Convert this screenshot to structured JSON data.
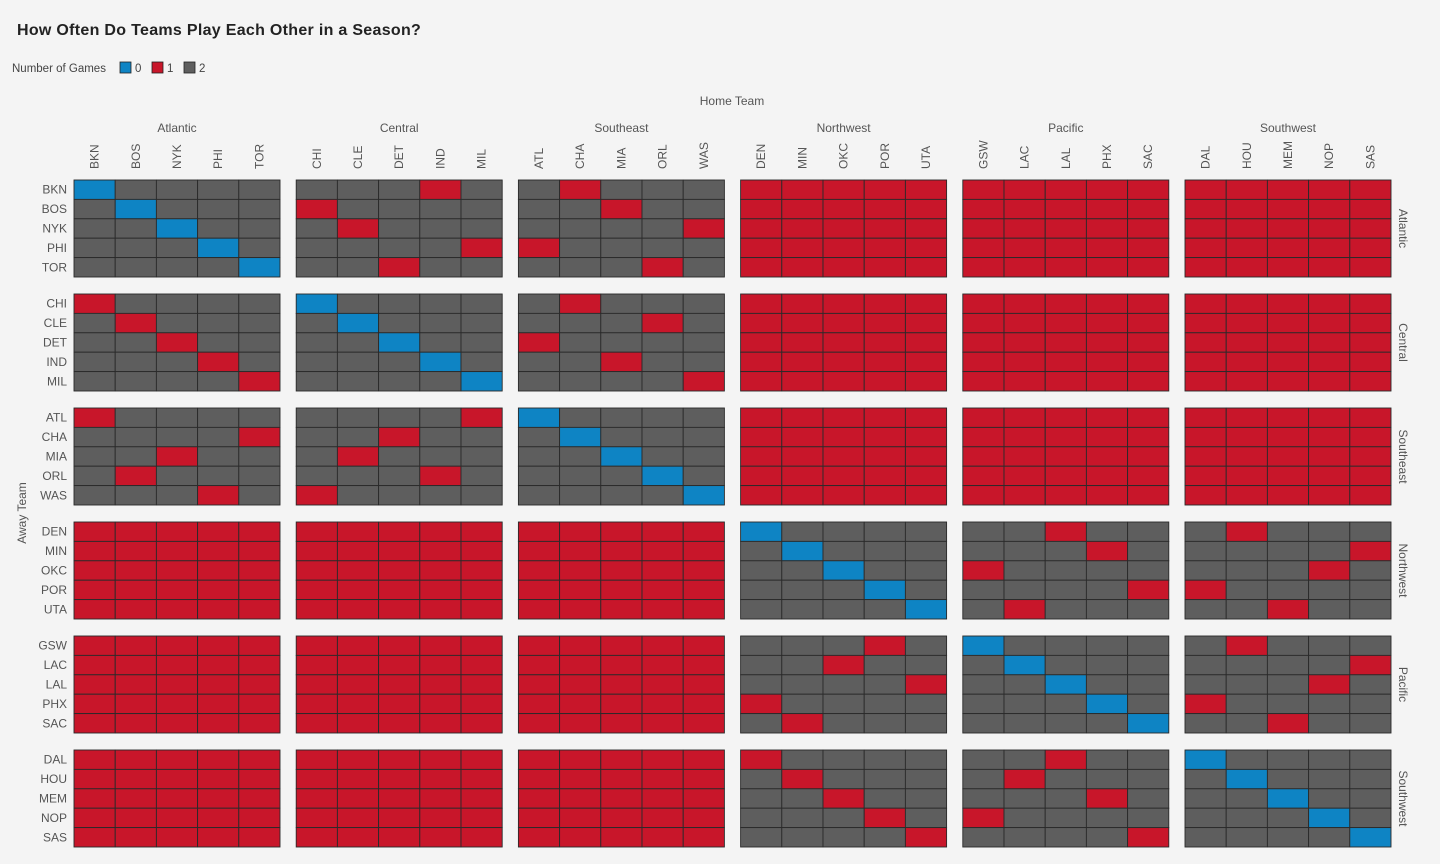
{
  "chart_data": {
    "type": "heatmap",
    "title": "How Often Do Teams Play Each Other in a Season?",
    "legend": {
      "title": "Number of Games",
      "placement": "top-left",
      "entries": [
        {
          "value": 0,
          "label": "0",
          "color": "#0e84c4"
        },
        {
          "value": 1,
          "label": "1",
          "color": "#c8162a"
        },
        {
          "value": 2,
          "label": "2",
          "color": "#5e5e5e"
        }
      ]
    },
    "xlabel": "Home Team",
    "ylabel": "Away Team",
    "divisions": [
      {
        "name": "Atlantic",
        "teams": [
          "BKN",
          "BOS",
          "NYK",
          "PHI",
          "TOR"
        ]
      },
      {
        "name": "Central",
        "teams": [
          "CHI",
          "CLE",
          "DET",
          "IND",
          "MIL"
        ]
      },
      {
        "name": "Southeast",
        "teams": [
          "ATL",
          "CHA",
          "MIA",
          "ORL",
          "WAS"
        ]
      },
      {
        "name": "Northwest",
        "teams": [
          "DEN",
          "MIN",
          "OKC",
          "POR",
          "UTA"
        ]
      },
      {
        "name": "Pacific",
        "teams": [
          "GSW",
          "LAC",
          "LAL",
          "PHX",
          "SAC"
        ]
      },
      {
        "name": "Southwest",
        "teams": [
          "DAL",
          "HOU",
          "MEM",
          "NOP",
          "SAS"
        ]
      }
    ],
    "matrix": [
      [
        0,
        2,
        2,
        2,
        2,
        2,
        2,
        2,
        1,
        2,
        2,
        1,
        2,
        2,
        2,
        1,
        1,
        1,
        1,
        1,
        1,
        1,
        1,
        1,
        1,
        1,
        1,
        1,
        1,
        1
      ],
      [
        2,
        0,
        2,
        2,
        2,
        1,
        2,
        2,
        2,
        2,
        2,
        2,
        1,
        2,
        2,
        1,
        1,
        1,
        1,
        1,
        1,
        1,
        1,
        1,
        1,
        1,
        1,
        1,
        1,
        1
      ],
      [
        2,
        2,
        0,
        2,
        2,
        2,
        1,
        2,
        2,
        2,
        2,
        2,
        2,
        2,
        1,
        1,
        1,
        1,
        1,
        1,
        1,
        1,
        1,
        1,
        1,
        1,
        1,
        1,
        1,
        1
      ],
      [
        2,
        2,
        2,
        0,
        2,
        2,
        2,
        2,
        2,
        1,
        1,
        2,
        2,
        2,
        2,
        1,
        1,
        1,
        1,
        1,
        1,
        1,
        1,
        1,
        1,
        1,
        1,
        1,
        1,
        1
      ],
      [
        2,
        2,
        2,
        2,
        0,
        2,
        2,
        1,
        2,
        2,
        2,
        2,
        2,
        1,
        2,
        1,
        1,
        1,
        1,
        1,
        1,
        1,
        1,
        1,
        1,
        1,
        1,
        1,
        1,
        1
      ],
      [
        1,
        2,
        2,
        2,
        2,
        0,
        2,
        2,
        2,
        2,
        2,
        1,
        2,
        2,
        2,
        1,
        1,
        1,
        1,
        1,
        1,
        1,
        1,
        1,
        1,
        1,
        1,
        1,
        1,
        1
      ],
      [
        2,
        1,
        2,
        2,
        2,
        2,
        0,
        2,
        2,
        2,
        2,
        2,
        2,
        1,
        2,
        1,
        1,
        1,
        1,
        1,
        1,
        1,
        1,
        1,
        1,
        1,
        1,
        1,
        1,
        1
      ],
      [
        2,
        2,
        1,
        2,
        2,
        2,
        2,
        0,
        2,
        2,
        1,
        2,
        2,
        2,
        2,
        1,
        1,
        1,
        1,
        1,
        1,
        1,
        1,
        1,
        1,
        1,
        1,
        1,
        1,
        1
      ],
      [
        2,
        2,
        2,
        1,
        2,
        2,
        2,
        2,
        0,
        2,
        2,
        2,
        1,
        2,
        2,
        1,
        1,
        1,
        1,
        1,
        1,
        1,
        1,
        1,
        1,
        1,
        1,
        1,
        1,
        1
      ],
      [
        2,
        2,
        2,
        2,
        1,
        2,
        2,
        2,
        2,
        0,
        2,
        2,
        2,
        2,
        1,
        1,
        1,
        1,
        1,
        1,
        1,
        1,
        1,
        1,
        1,
        1,
        1,
        1,
        1,
        1
      ],
      [
        1,
        2,
        2,
        2,
        2,
        2,
        2,
        2,
        2,
        1,
        0,
        2,
        2,
        2,
        2,
        1,
        1,
        1,
        1,
        1,
        1,
        1,
        1,
        1,
        1,
        1,
        1,
        1,
        1,
        1
      ],
      [
        2,
        2,
        2,
        2,
        1,
        2,
        2,
        1,
        2,
        2,
        2,
        0,
        2,
        2,
        2,
        1,
        1,
        1,
        1,
        1,
        1,
        1,
        1,
        1,
        1,
        1,
        1,
        1,
        1,
        1
      ],
      [
        2,
        2,
        1,
        2,
        2,
        2,
        1,
        2,
        2,
        2,
        2,
        2,
        0,
        2,
        2,
        1,
        1,
        1,
        1,
        1,
        1,
        1,
        1,
        1,
        1,
        1,
        1,
        1,
        1,
        1
      ],
      [
        2,
        1,
        2,
        2,
        2,
        2,
        2,
        2,
        1,
        2,
        2,
        2,
        2,
        0,
        2,
        1,
        1,
        1,
        1,
        1,
        1,
        1,
        1,
        1,
        1,
        1,
        1,
        1,
        1,
        1
      ],
      [
        2,
        2,
        2,
        1,
        2,
        1,
        2,
        2,
        2,
        2,
        2,
        2,
        2,
        2,
        0,
        1,
        1,
        1,
        1,
        1,
        1,
        1,
        1,
        1,
        1,
        1,
        1,
        1,
        1,
        1
      ],
      [
        1,
        1,
        1,
        1,
        1,
        1,
        1,
        1,
        1,
        1,
        1,
        1,
        1,
        1,
        1,
        0,
        2,
        2,
        2,
        2,
        2,
        2,
        1,
        2,
        2,
        2,
        1,
        2,
        2,
        2
      ],
      [
        1,
        1,
        1,
        1,
        1,
        1,
        1,
        1,
        1,
        1,
        1,
        1,
        1,
        1,
        1,
        2,
        0,
        2,
        2,
        2,
        2,
        2,
        2,
        1,
        2,
        2,
        2,
        2,
        2,
        1
      ],
      [
        1,
        1,
        1,
        1,
        1,
        1,
        1,
        1,
        1,
        1,
        1,
        1,
        1,
        1,
        1,
        2,
        2,
        0,
        2,
        2,
        1,
        2,
        2,
        2,
        2,
        2,
        2,
        2,
        1,
        2
      ],
      [
        1,
        1,
        1,
        1,
        1,
        1,
        1,
        1,
        1,
        1,
        1,
        1,
        1,
        1,
        1,
        2,
        2,
        2,
        0,
        2,
        2,
        2,
        2,
        2,
        1,
        1,
        2,
        2,
        2,
        2
      ],
      [
        1,
        1,
        1,
        1,
        1,
        1,
        1,
        1,
        1,
        1,
        1,
        1,
        1,
        1,
        1,
        2,
        2,
        2,
        2,
        0,
        2,
        1,
        2,
        2,
        2,
        2,
        2,
        1,
        2,
        2
      ],
      [
        1,
        1,
        1,
        1,
        1,
        1,
        1,
        1,
        1,
        1,
        1,
        1,
        1,
        1,
        1,
        2,
        2,
        2,
        1,
        2,
        0,
        2,
        2,
        2,
        2,
        2,
        1,
        2,
        2,
        2
      ],
      [
        1,
        1,
        1,
        1,
        1,
        1,
        1,
        1,
        1,
        1,
        1,
        1,
        1,
        1,
        1,
        2,
        2,
        1,
        2,
        2,
        2,
        0,
        2,
        2,
        2,
        2,
        2,
        2,
        2,
        1
      ],
      [
        1,
        1,
        1,
        1,
        1,
        1,
        1,
        1,
        1,
        1,
        1,
        1,
        1,
        1,
        1,
        2,
        2,
        2,
        2,
        1,
        2,
        2,
        0,
        2,
        2,
        2,
        2,
        2,
        1,
        2
      ],
      [
        1,
        1,
        1,
        1,
        1,
        1,
        1,
        1,
        1,
        1,
        1,
        1,
        1,
        1,
        1,
        1,
        2,
        2,
        2,
        2,
        2,
        2,
        2,
        0,
        2,
        1,
        2,
        2,
        2,
        2
      ],
      [
        1,
        1,
        1,
        1,
        1,
        1,
        1,
        1,
        1,
        1,
        1,
        1,
        1,
        1,
        1,
        2,
        1,
        2,
        2,
        2,
        2,
        2,
        2,
        2,
        0,
        2,
        2,
        1,
        2,
        2
      ],
      [
        1,
        1,
        1,
        1,
        1,
        1,
        1,
        1,
        1,
        1,
        1,
        1,
        1,
        1,
        1,
        1,
        2,
        2,
        2,
        2,
        2,
        2,
        1,
        2,
        2,
        0,
        2,
        2,
        2,
        2
      ],
      [
        1,
        1,
        1,
        1,
        1,
        1,
        1,
        1,
        1,
        1,
        1,
        1,
        1,
        1,
        1,
        2,
        1,
        2,
        2,
        2,
        2,
        1,
        2,
        2,
        2,
        2,
        0,
        2,
        2,
        2
      ],
      [
        1,
        1,
        1,
        1,
        1,
        1,
        1,
        1,
        1,
        1,
        1,
        1,
        1,
        1,
        1,
        2,
        2,
        1,
        2,
        2,
        2,
        2,
        2,
        1,
        2,
        2,
        2,
        0,
        2,
        2
      ],
      [
        1,
        1,
        1,
        1,
        1,
        1,
        1,
        1,
        1,
        1,
        1,
        1,
        1,
        1,
        1,
        2,
        2,
        2,
        1,
        2,
        1,
        2,
        2,
        2,
        2,
        2,
        2,
        2,
        0,
        2
      ],
      [
        1,
        1,
        1,
        1,
        1,
        1,
        1,
        1,
        1,
        1,
        1,
        1,
        1,
        1,
        1,
        2,
        2,
        2,
        2,
        1,
        2,
        2,
        2,
        2,
        1,
        2,
        2,
        2,
        2,
        0
      ]
    ]
  }
}
